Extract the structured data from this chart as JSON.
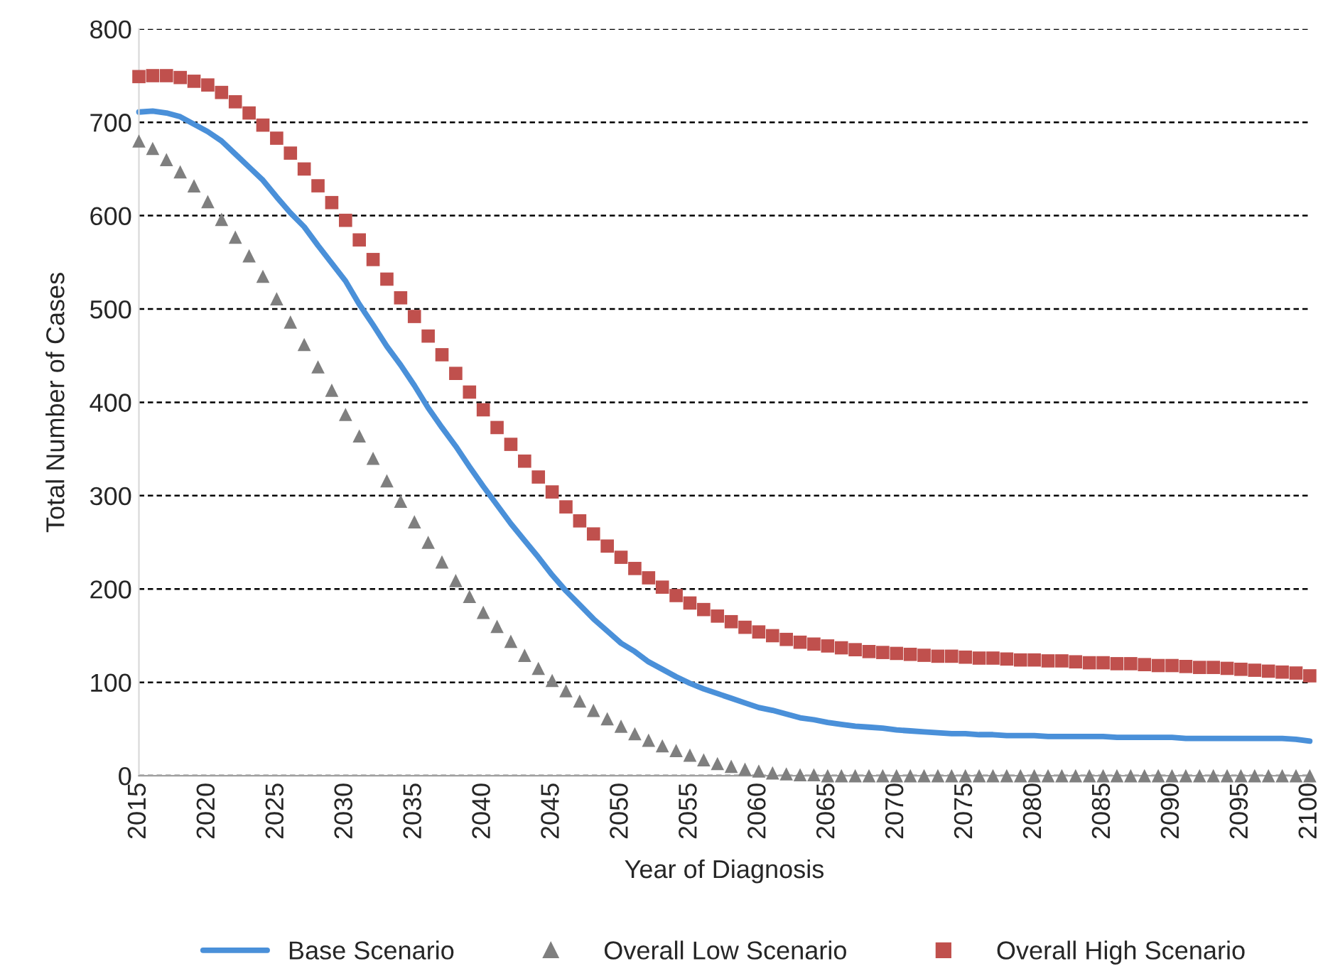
{
  "chart_data": {
    "type": "line",
    "xlabel": "Year of Diagnosis",
    "ylabel": "Total Number of Cases",
    "x": [
      2015,
      2016,
      2017,
      2018,
      2019,
      2020,
      2021,
      2022,
      2023,
      2024,
      2025,
      2026,
      2027,
      2028,
      2029,
      2030,
      2031,
      2032,
      2033,
      2034,
      2035,
      2036,
      2037,
      2038,
      2039,
      2040,
      2041,
      2042,
      2043,
      2044,
      2045,
      2046,
      2047,
      2048,
      2049,
      2050,
      2051,
      2052,
      2053,
      2054,
      2055,
      2056,
      2057,
      2058,
      2059,
      2060,
      2061,
      2062,
      2063,
      2064,
      2065,
      2066,
      2067,
      2068,
      2069,
      2070,
      2071,
      2072,
      2073,
      2074,
      2075,
      2076,
      2077,
      2078,
      2079,
      2080,
      2081,
      2082,
      2083,
      2084,
      2085,
      2086,
      2087,
      2088,
      2089,
      2090,
      2091,
      2092,
      2093,
      2094,
      2095,
      2096,
      2097,
      2098,
      2099,
      2100
    ],
    "series": [
      {
        "name": "Base Scenario",
        "color": "#4a90d9",
        "marker": "none",
        "line_style": "solid",
        "values": [
          711,
          712,
          710,
          706,
          698,
          690,
          680,
          666,
          652,
          638,
          620,
          603,
          588,
          568,
          549,
          530,
          505,
          483,
          460,
          440,
          418,
          394,
          373,
          353,
          331,
          310,
          290,
          270,
          252,
          234,
          215,
          198,
          183,
          168,
          155,
          142,
          133,
          122,
          114,
          106,
          99,
          93,
          88,
          83,
          78,
          73,
          70,
          66,
          62,
          60,
          57,
          55,
          53,
          52,
          51,
          49,
          48,
          47,
          46,
          45,
          45,
          44,
          44,
          43,
          43,
          43,
          42,
          42,
          42,
          42,
          42,
          41,
          41,
          41,
          41,
          41,
          40,
          40,
          40,
          40,
          40,
          40,
          40,
          40,
          39,
          37
        ]
      },
      {
        "name": "Overall Low Scenario",
        "type": "scatter",
        "color": "#7f7f7f",
        "marker": "triangle",
        "values": [
          680,
          672,
          660,
          647,
          632,
          615,
          596,
          577,
          557,
          535,
          511,
          486,
          462,
          438,
          413,
          387,
          364,
          340,
          316,
          294,
          272,
          250,
          229,
          209,
          192,
          175,
          160,
          144,
          129,
          115,
          102,
          91,
          80,
          70,
          61,
          53,
          45,
          38,
          32,
          27,
          22,
          17,
          13,
          10,
          7,
          5,
          3,
          2,
          1,
          1,
          0,
          0,
          0,
          0,
          0,
          0,
          0,
          0,
          0,
          0,
          0,
          0,
          0,
          0,
          0,
          0,
          0,
          0,
          0,
          0,
          0,
          0,
          0,
          0,
          0,
          0,
          0,
          0,
          0,
          0,
          0,
          0,
          0,
          0,
          0,
          0
        ]
      },
      {
        "name": "Overall High Scenario",
        "type": "scatter",
        "color": "#c0504d",
        "marker": "square",
        "values": [
          749,
          750,
          750,
          748,
          744,
          740,
          732,
          722,
          710,
          697,
          683,
          667,
          650,
          632,
          614,
          595,
          574,
          553,
          532,
          512,
          492,
          471,
          451,
          431,
          411,
          392,
          373,
          355,
          337,
          320,
          304,
          288,
          273,
          259,
          246,
          234,
          222,
          212,
          202,
          193,
          185,
          178,
          171,
          165,
          159,
          154,
          150,
          146,
          143,
          141,
          139,
          137,
          135,
          133,
          132,
          131,
          130,
          129,
          128,
          128,
          127,
          126,
          126,
          125,
          124,
          124,
          123,
          123,
          122,
          121,
          121,
          120,
          120,
          119,
          118,
          118,
          117,
          116,
          116,
          115,
          114,
          113,
          112,
          111,
          110,
          107
        ]
      }
    ],
    "xlim": [
      2015,
      2100
    ],
    "xticks": [
      2015,
      2020,
      2025,
      2030,
      2035,
      2040,
      2045,
      2050,
      2055,
      2060,
      2065,
      2070,
      2075,
      2080,
      2085,
      2090,
      2095,
      2100
    ],
    "ylim": [
      0,
      800
    ],
    "yticks": [
      0,
      100,
      200,
      300,
      400,
      500,
      600,
      700,
      800
    ],
    "grid": "y",
    "legend": "bottom"
  }
}
